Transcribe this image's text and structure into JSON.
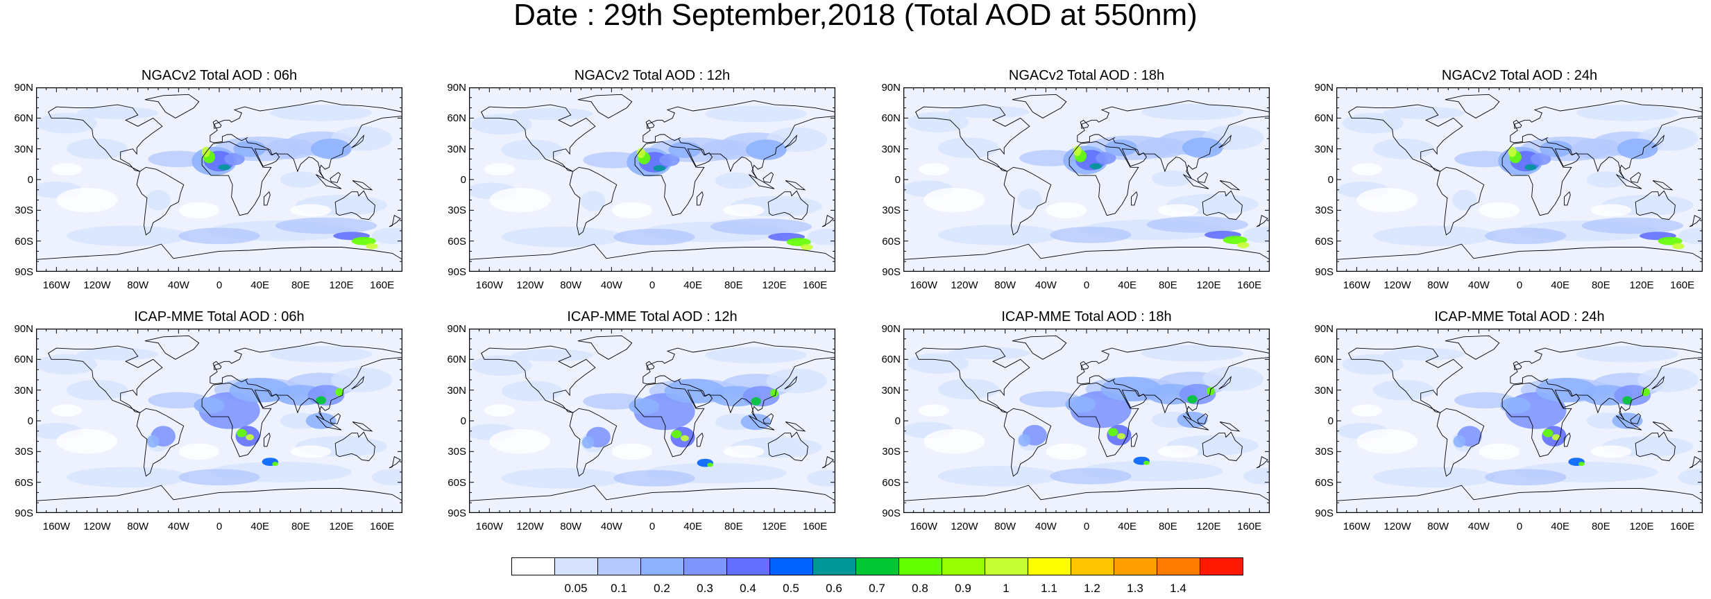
{
  "title": "Date : 29th September,2018 (Total AOD at 550nm)",
  "axes": {
    "lat_ticks": [
      "90N",
      "60N",
      "30N",
      "0",
      "30S",
      "60S",
      "90S"
    ],
    "lon_ticks": [
      "160W",
      "120W",
      "80W",
      "40W",
      "0",
      "40E",
      "80E",
      "120E",
      "160E"
    ]
  },
  "panels": [
    {
      "title": "NGACv2 Total AOD : 06h",
      "model": "NGACv2",
      "hour": "06h"
    },
    {
      "title": "NGACv2 Total AOD : 12h",
      "model": "NGACv2",
      "hour": "12h"
    },
    {
      "title": "NGACv2 Total AOD : 18h",
      "model": "NGACv2",
      "hour": "18h"
    },
    {
      "title": "NGACv2 Total AOD : 24h",
      "model": "NGACv2",
      "hour": "24h"
    },
    {
      "title": "ICAP-MME Total AOD : 06h",
      "model": "ICAP-MME",
      "hour": "06h"
    },
    {
      "title": "ICAP-MME Total AOD : 12h",
      "model": "ICAP-MME",
      "hour": "12h"
    },
    {
      "title": "ICAP-MME Total AOD : 18h",
      "model": "ICAP-MME",
      "hour": "18h"
    },
    {
      "title": "ICAP-MME Total AOD : 24h",
      "model": "ICAP-MME",
      "hour": "24h"
    }
  ],
  "colorbar": {
    "labels": [
      "0.05",
      "0.1",
      "0.2",
      "0.3",
      "0.4",
      "0.5",
      "0.6",
      "0.7",
      "0.8",
      "0.9",
      "1",
      "1.1",
      "1.2",
      "1.3",
      "1.4"
    ],
    "colors": [
      "#ffffff",
      "#d6e2ff",
      "#b5c9ff",
      "#8eb2ff",
      "#7f96ff",
      "#6370ff",
      "#0063ff",
      "#009696",
      "#00c633",
      "#63ff00",
      "#96ff00",
      "#c6ff33",
      "#ffff00",
      "#ffc600",
      "#ffa000",
      "#ff7c00",
      "#ff1900"
    ]
  }
}
